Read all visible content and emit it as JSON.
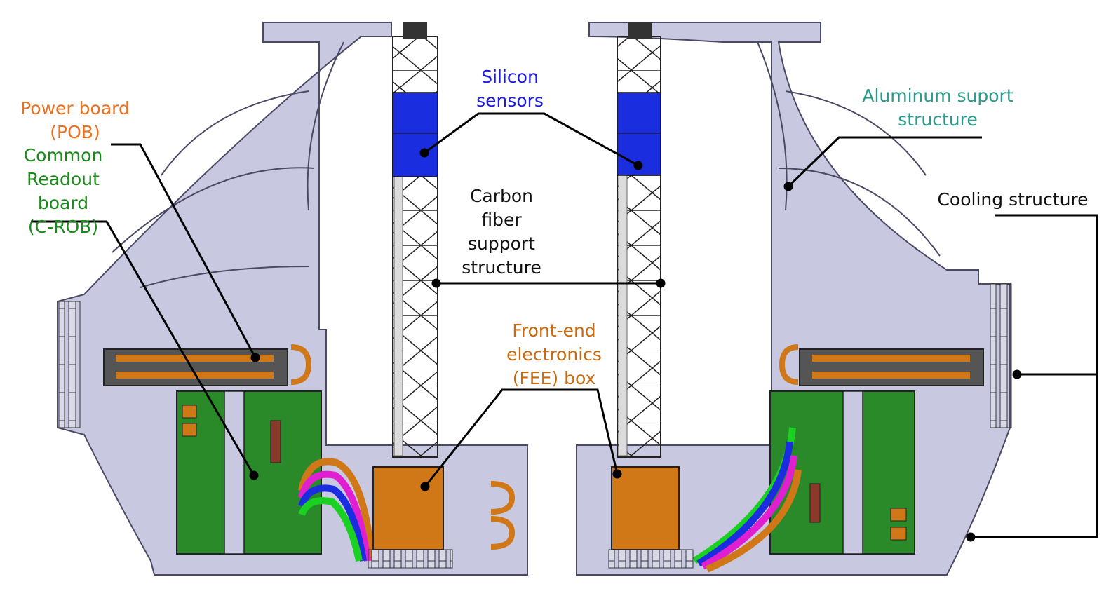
{
  "colors": {
    "frame": "#c8c8e0",
    "frame_stroke": "#4a4a66",
    "silicon": "#1a2ee0",
    "copper": "#d07818",
    "board": "#2a8a2a",
    "leader": "#000000",
    "label_power": "#e87020",
    "label_crob": "#1a8a1a",
    "label_silicon": "#1a1ae0",
    "label_aluminum": "#2a9a8a",
    "label_carbon": "#111111",
    "label_fee": "#c86a10",
    "label_cooling": "#111111"
  },
  "labels": {
    "power_board": [
      "Power board",
      "(POB)"
    ],
    "crob": [
      "Common",
      "Readout",
      "board",
      "(C-ROB)"
    ],
    "silicon": [
      "Silicon",
      "sensors"
    ],
    "carbon": [
      "Carbon",
      "fiber",
      "support",
      "structure"
    ],
    "fee": [
      "Front-end",
      "electronics",
      "(FEE) box"
    ],
    "aluminum": [
      "Aluminum suport",
      "structure"
    ],
    "cooling": [
      "Cooling structure"
    ]
  }
}
